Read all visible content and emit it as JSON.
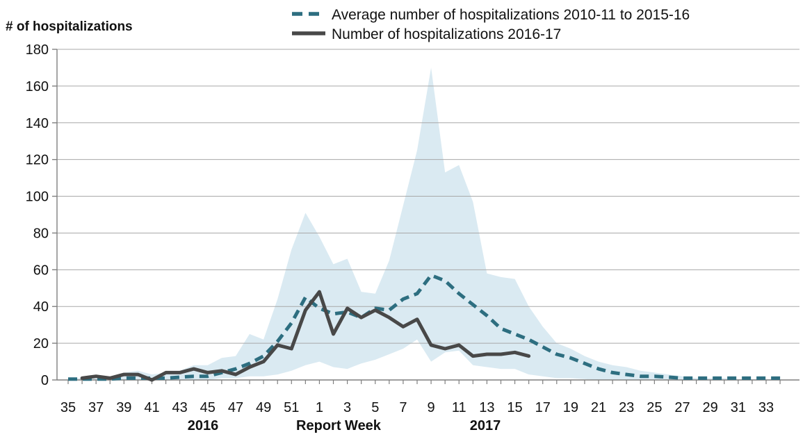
{
  "chart_data": {
    "type": "line",
    "title": "",
    "xlabel": "Report Week",
    "ylabel": "# of hospitalizations",
    "x_year_left": "2016",
    "x_year_right": "2017",
    "ylim": [
      0,
      180
    ],
    "y_tick_step": 20,
    "grid": true,
    "legend_position": "top",
    "weeks": [
      35,
      36,
      37,
      38,
      39,
      40,
      41,
      42,
      43,
      44,
      45,
      46,
      47,
      48,
      49,
      50,
      51,
      52,
      1,
      2,
      3,
      4,
      5,
      6,
      7,
      8,
      9,
      10,
      11,
      12,
      13,
      14,
      15,
      16,
      17,
      18,
      19,
      20,
      21,
      22,
      23,
      24,
      25,
      26,
      27,
      28,
      29,
      30,
      31,
      32,
      33,
      34
    ],
    "series": [
      {
        "name": "Average number of hospitalizations 2010-11 to 2015-16",
        "style": "dashed",
        "color": "#2d6e80",
        "values": [
          0.5,
          0.5,
          0.5,
          0.5,
          1,
          1,
          1,
          1,
          1.5,
          2,
          2,
          4,
          6,
          9,
          13,
          21,
          31,
          45,
          39,
          36,
          37,
          34,
          39,
          38,
          44,
          47,
          57,
          54,
          47,
          41,
          35,
          28,
          25,
          22,
          18,
          14,
          12,
          9,
          6,
          4,
          3,
          2,
          2,
          1.5,
          1,
          1,
          1,
          1,
          1,
          1,
          1,
          1
        ]
      },
      {
        "name": "Number of hospitalizations 2016-17",
        "style": "solid",
        "color": "#484848",
        "values": [
          null,
          1,
          2,
          1,
          3,
          3,
          0,
          4,
          4,
          6,
          4,
          5,
          3,
          7,
          10,
          19,
          17,
          38,
          48,
          25,
          39,
          34,
          38,
          34,
          29,
          33,
          19,
          17,
          19,
          13,
          14,
          14,
          15,
          13,
          null,
          null,
          null,
          null,
          null,
          null,
          null,
          null,
          null,
          null,
          null,
          null,
          null,
          null,
          null,
          null,
          null,
          null
        ]
      }
    ],
    "band": {
      "name": "min-max-range-2010-11-to-2015-16",
      "color": "#daeaf2",
      "max": [
        1,
        1,
        1,
        2,
        4,
        5,
        3,
        4,
        5,
        8,
        8,
        12,
        13,
        25,
        22,
        44,
        71,
        91,
        78,
        63,
        66,
        48,
        47,
        65,
        95,
        125,
        170,
        113,
        117,
        97,
        58,
        56,
        55,
        40,
        29,
        20,
        17,
        13,
        10,
        8,
        7,
        5,
        4,
        3,
        2,
        1,
        1,
        1,
        0.5,
        0.5,
        0.5,
        0.5
      ],
      "min": [
        0,
        0,
        0,
        0,
        0,
        0,
        0,
        0,
        0,
        0,
        0,
        1,
        1,
        2,
        2,
        3,
        5,
        8,
        10,
        7,
        6,
        9,
        11,
        14,
        17,
        22,
        10,
        15,
        16,
        8,
        7,
        6,
        6,
        3,
        2,
        1,
        1,
        0.5,
        0,
        0,
        0,
        0,
        0,
        0,
        0,
        0,
        0,
        0,
        0,
        0,
        0,
        0
      ]
    },
    "colors": {
      "grid": "#a8a8a8",
      "axis": "#7f7f7f",
      "background": "#ffffff"
    }
  }
}
